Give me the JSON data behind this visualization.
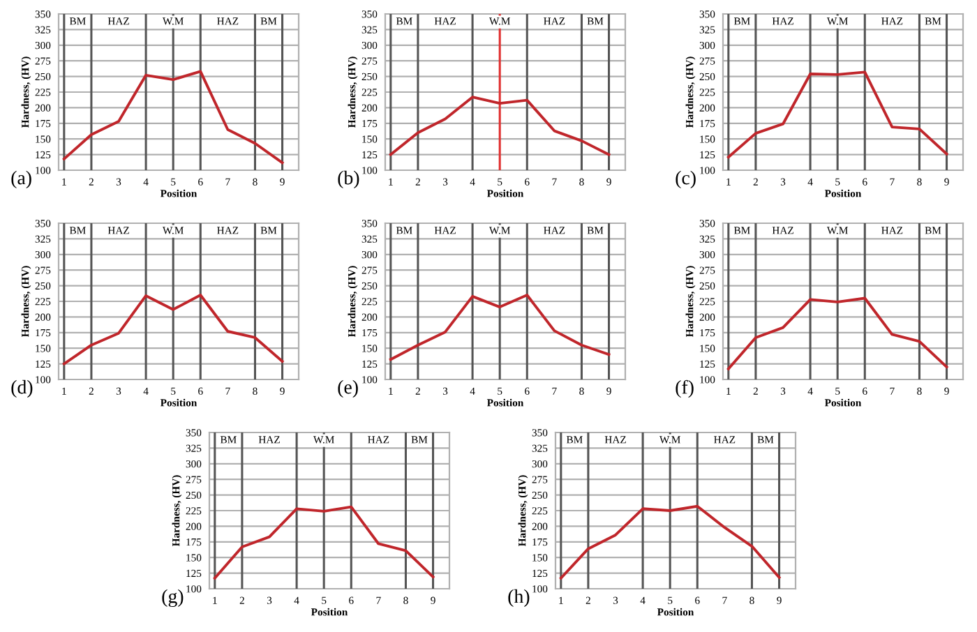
{
  "chart_data": [
    {
      "type": "line",
      "xlabel": "Position",
      "ylabel": "Hardness, (HV)",
      "x": [
        1,
        2,
        3,
        4,
        5,
        6,
        7,
        8,
        9
      ],
      "series": [
        {
          "color": "#c0262b",
          "values": [
            118,
            157,
            178,
            252,
            245,
            258,
            165,
            143,
            112
          ]
        }
      ],
      "xlim": [
        0.8,
        9.6
      ],
      "xticks": [
        1,
        2,
        3,
        4,
        5,
        6,
        7,
        8,
        9
      ],
      "ylim": [
        100,
        350
      ],
      "yticks": [
        100,
        125,
        150,
        175,
        200,
        225,
        250,
        275,
        300,
        325,
        350
      ],
      "grid": "y",
      "ref_lines": [
        {
          "axis": "x",
          "value": 1,
          "color": "#555555"
        },
        {
          "axis": "x",
          "value": 2,
          "color": "#555555"
        },
        {
          "axis": "x",
          "value": 4,
          "color": "#555555"
        },
        {
          "axis": "x",
          "value": 5,
          "color": "#555555"
        },
        {
          "axis": "x",
          "value": 6,
          "color": "#555555"
        },
        {
          "axis": "x",
          "value": 8,
          "color": "#555555"
        },
        {
          "axis": "x",
          "value": 9,
          "color": "#555555"
        }
      ],
      "annotations": [
        "(a)",
        {
          "text": "BM",
          "x": 1.5,
          "y": 337
        },
        {
          "text": "HAZ",
          "x": 3,
          "y": 337
        },
        {
          "text": "W.M",
          "x": 5,
          "y": 337
        },
        {
          "text": "HAZ",
          "x": 7,
          "y": 337
        },
        {
          "text": "BM",
          "x": 8.5,
          "y": 337
        }
      ]
    },
    {
      "type": "line",
      "xlabel": "Position",
      "ylabel": "Hardness, (HV)",
      "x": [
        1,
        2,
        3,
        4,
        5,
        6,
        7,
        8,
        9
      ],
      "series": [
        {
          "color": "#c0262b",
          "values": [
            125,
            160,
            182,
            217,
            207,
            212,
            163,
            147,
            125
          ]
        }
      ],
      "xlim": [
        0.8,
        9.6
      ],
      "xticks": [
        1,
        2,
        3,
        4,
        5,
        6,
        7,
        8,
        9
      ],
      "ylim": [
        100,
        350
      ],
      "yticks": [
        100,
        125,
        150,
        175,
        200,
        225,
        250,
        275,
        300,
        325,
        350
      ],
      "grid": "y",
      "ref_lines": [
        {
          "axis": "x",
          "value": 1,
          "color": "#555555"
        },
        {
          "axis": "x",
          "value": 2,
          "color": "#555555"
        },
        {
          "axis": "x",
          "value": 4,
          "color": "#555555"
        },
        {
          "axis": "x",
          "value": 5,
          "color": "#e03030"
        },
        {
          "axis": "x",
          "value": 6,
          "color": "#555555"
        },
        {
          "axis": "x",
          "value": 8,
          "color": "#555555"
        },
        {
          "axis": "x",
          "value": 9,
          "color": "#555555"
        }
      ],
      "annotations": [
        "(b)",
        {
          "text": "BM",
          "x": 1.5,
          "y": 337
        },
        {
          "text": "HAZ",
          "x": 3,
          "y": 337
        },
        {
          "text": "W.M",
          "x": 5,
          "y": 337
        },
        {
          "text": "HAZ",
          "x": 7,
          "y": 337
        },
        {
          "text": "BM",
          "x": 8.5,
          "y": 337
        }
      ]
    },
    {
      "type": "line",
      "xlabel": "Position",
      "ylabel": "Hardness, (HV)",
      "x": [
        1,
        2,
        3,
        4,
        5,
        6,
        7,
        8,
        9
      ],
      "series": [
        {
          "color": "#c0262b",
          "values": [
            121,
            159,
            174,
            254,
            253,
            257,
            169,
            166,
            126
          ]
        }
      ],
      "xlim": [
        0.8,
        9.6
      ],
      "xticks": [
        1,
        2,
        3,
        4,
        5,
        6,
        7,
        8,
        9
      ],
      "ylim": [
        100,
        350
      ],
      "yticks": [
        100,
        125,
        150,
        175,
        200,
        225,
        250,
        275,
        300,
        325,
        350
      ],
      "grid": "y",
      "ref_lines": [
        {
          "axis": "x",
          "value": 1,
          "color": "#555555"
        },
        {
          "axis": "x",
          "value": 2,
          "color": "#555555"
        },
        {
          "axis": "x",
          "value": 4,
          "color": "#555555"
        },
        {
          "axis": "x",
          "value": 5,
          "color": "#555555"
        },
        {
          "axis": "x",
          "value": 6,
          "color": "#555555"
        },
        {
          "axis": "x",
          "value": 8,
          "color": "#555555"
        },
        {
          "axis": "x",
          "value": 9,
          "color": "#555555"
        }
      ],
      "annotations": [
        "(c)",
        {
          "text": "BM",
          "x": 1.5,
          "y": 337
        },
        {
          "text": "HAZ",
          "x": 3,
          "y": 337
        },
        {
          "text": "W.M",
          "x": 5,
          "y": 337
        },
        {
          "text": "HAZ",
          "x": 7,
          "y": 337
        },
        {
          "text": "BM",
          "x": 8.5,
          "y": 337
        }
      ]
    },
    {
      "type": "line",
      "xlabel": "Position",
      "ylabel": "Hardness, (HV)",
      "x": [
        1,
        2,
        3,
        4,
        5,
        6,
        7,
        8,
        9
      ],
      "series": [
        {
          "color": "#c0262b",
          "values": [
            125,
            155,
            174,
            234,
            212,
            235,
            177,
            167,
            129
          ]
        }
      ],
      "xlim": [
        0.8,
        9.6
      ],
      "xticks": [
        1,
        2,
        3,
        4,
        5,
        6,
        7,
        8,
        9
      ],
      "ylim": [
        100,
        350
      ],
      "yticks": [
        100,
        125,
        150,
        175,
        200,
        225,
        250,
        275,
        300,
        325,
        350
      ],
      "grid": "y",
      "ref_lines": [
        {
          "axis": "x",
          "value": 1,
          "color": "#555555"
        },
        {
          "axis": "x",
          "value": 2,
          "color": "#555555"
        },
        {
          "axis": "x",
          "value": 4,
          "color": "#555555"
        },
        {
          "axis": "x",
          "value": 5,
          "color": "#555555"
        },
        {
          "axis": "x",
          "value": 6,
          "color": "#555555"
        },
        {
          "axis": "x",
          "value": 8,
          "color": "#555555"
        },
        {
          "axis": "x",
          "value": 9,
          "color": "#555555"
        }
      ],
      "annotations": [
        "(d)",
        {
          "text": "BM",
          "x": 1.5,
          "y": 337
        },
        {
          "text": "HAZ",
          "x": 3,
          "y": 337
        },
        {
          "text": "W.M",
          "x": 5,
          "y": 337
        },
        {
          "text": "HAZ",
          "x": 7,
          "y": 337
        },
        {
          "text": "BM",
          "x": 8.5,
          "y": 337
        }
      ]
    },
    {
      "type": "line",
      "xlabel": "Position",
      "ylabel": "Hardness, (HV)",
      "x": [
        1,
        2,
        3,
        4,
        5,
        6,
        7,
        8,
        9
      ],
      "series": [
        {
          "color": "#c0262b",
          "values": [
            132,
            155,
            176,
            233,
            216,
            235,
            178,
            155,
            140
          ]
        }
      ],
      "xlim": [
        0.8,
        9.6
      ],
      "xticks": [
        1,
        2,
        3,
        4,
        5,
        6,
        7,
        8,
        9
      ],
      "ylim": [
        100,
        350
      ],
      "yticks": [
        100,
        125,
        150,
        175,
        200,
        225,
        250,
        275,
        300,
        325,
        350
      ],
      "grid": "y",
      "ref_lines": [
        {
          "axis": "x",
          "value": 1,
          "color": "#555555"
        },
        {
          "axis": "x",
          "value": 2,
          "color": "#555555"
        },
        {
          "axis": "x",
          "value": 4,
          "color": "#555555"
        },
        {
          "axis": "x",
          "value": 5,
          "color": "#555555"
        },
        {
          "axis": "x",
          "value": 6,
          "color": "#555555"
        },
        {
          "axis": "x",
          "value": 8,
          "color": "#555555"
        },
        {
          "axis": "x",
          "value": 9,
          "color": "#555555"
        }
      ],
      "annotations": [
        "(e)",
        {
          "text": "BM",
          "x": 1.5,
          "y": 337
        },
        {
          "text": "HAZ",
          "x": 3,
          "y": 337
        },
        {
          "text": "W.M",
          "x": 5,
          "y": 337
        },
        {
          "text": "HAZ",
          "x": 7,
          "y": 337
        },
        {
          "text": "BM",
          "x": 8.5,
          "y": 337
        }
      ]
    },
    {
      "type": "line",
      "xlabel": "Position",
      "ylabel": "Hardness, (HV)",
      "x": [
        1,
        2,
        3,
        4,
        5,
        6,
        7,
        8,
        9
      ],
      "series": [
        {
          "color": "#c0262b",
          "values": [
            117,
            167,
            183,
            228,
            224,
            230,
            172,
            161,
            120
          ]
        }
      ],
      "xlim": [
        0.8,
        9.6
      ],
      "xticks": [
        1,
        2,
        3,
        4,
        5,
        6,
        7,
        8,
        9
      ],
      "ylim": [
        100,
        350
      ],
      "yticks": [
        100,
        125,
        150,
        175,
        200,
        225,
        250,
        275,
        300,
        325,
        350
      ],
      "grid": "y",
      "ref_lines": [
        {
          "axis": "x",
          "value": 1,
          "color": "#555555"
        },
        {
          "axis": "x",
          "value": 2,
          "color": "#555555"
        },
        {
          "axis": "x",
          "value": 4,
          "color": "#555555"
        },
        {
          "axis": "x",
          "value": 5,
          "color": "#555555"
        },
        {
          "axis": "x",
          "value": 6,
          "color": "#555555"
        },
        {
          "axis": "x",
          "value": 8,
          "color": "#555555"
        },
        {
          "axis": "x",
          "value": 9,
          "color": "#555555"
        }
      ],
      "annotations": [
        "(f)",
        {
          "text": "BM",
          "x": 1.5,
          "y": 337
        },
        {
          "text": "HAZ",
          "x": 3,
          "y": 337
        },
        {
          "text": "W.M",
          "x": 5,
          "y": 337
        },
        {
          "text": "HAZ",
          "x": 7,
          "y": 337
        },
        {
          "text": "BM",
          "x": 8.5,
          "y": 337
        }
      ]
    },
    {
      "type": "line",
      "xlabel": "Position",
      "ylabel": "Hardness, (HV)",
      "x": [
        1,
        2,
        3,
        4,
        5,
        6,
        7,
        8,
        9
      ],
      "series": [
        {
          "color": "#c0262b",
          "values": [
            117,
            167,
            183,
            228,
            224,
            231,
            172,
            161,
            119
          ]
        }
      ],
      "xlim": [
        0.8,
        9.6
      ],
      "xticks": [
        1,
        2,
        3,
        4,
        5,
        6,
        7,
        8,
        9
      ],
      "ylim": [
        100,
        350
      ],
      "yticks": [
        100,
        125,
        150,
        175,
        200,
        225,
        250,
        275,
        300,
        325,
        350
      ],
      "grid": "y",
      "ref_lines": [
        {
          "axis": "x",
          "value": 1,
          "color": "#555555"
        },
        {
          "axis": "x",
          "value": 2,
          "color": "#555555"
        },
        {
          "axis": "x",
          "value": 4,
          "color": "#555555"
        },
        {
          "axis": "x",
          "value": 5,
          "color": "#555555"
        },
        {
          "axis": "x",
          "value": 6,
          "color": "#555555"
        },
        {
          "axis": "x",
          "value": 8,
          "color": "#555555"
        },
        {
          "axis": "x",
          "value": 9,
          "color": "#555555"
        }
      ],
      "annotations": [
        "(g)",
        {
          "text": "BM",
          "x": 1.5,
          "y": 337
        },
        {
          "text": "HAZ",
          "x": 3,
          "y": 337
        },
        {
          "text": "W.M",
          "x": 5,
          "y": 337
        },
        {
          "text": "HAZ",
          "x": 7,
          "y": 337
        },
        {
          "text": "BM",
          "x": 8.5,
          "y": 337
        }
      ]
    },
    {
      "type": "line",
      "xlabel": "Position",
      "ylabel": "Hardness, (HV)",
      "x": [
        1,
        2,
        3,
        4,
        5,
        6,
        7,
        8,
        9
      ],
      "series": [
        {
          "color": "#c0262b",
          "values": [
            117,
            164,
            186,
            228,
            225,
            232,
            198,
            168,
            118
          ]
        }
      ],
      "xlim": [
        0.8,
        9.6
      ],
      "xticks": [
        1,
        2,
        3,
        4,
        5,
        6,
        7,
        8,
        9
      ],
      "ylim": [
        100,
        350
      ],
      "yticks": [
        100,
        125,
        150,
        175,
        200,
        225,
        250,
        275,
        300,
        325,
        350
      ],
      "grid": "y",
      "ref_lines": [
        {
          "axis": "x",
          "value": 1,
          "color": "#555555"
        },
        {
          "axis": "x",
          "value": 2,
          "color": "#555555"
        },
        {
          "axis": "x",
          "value": 4,
          "color": "#555555"
        },
        {
          "axis": "x",
          "value": 5,
          "color": "#555555"
        },
        {
          "axis": "x",
          "value": 6,
          "color": "#555555"
        },
        {
          "axis": "x",
          "value": 8,
          "color": "#555555"
        },
        {
          "axis": "x",
          "value": 9,
          "color": "#555555"
        }
      ],
      "annotations": [
        "(h)",
        {
          "text": "BM",
          "x": 1.5,
          "y": 337
        },
        {
          "text": "HAZ",
          "x": 3,
          "y": 337
        },
        {
          "text": "W.M",
          "x": 5,
          "y": 337
        },
        {
          "text": "HAZ",
          "x": 7,
          "y": 337
        },
        {
          "text": "BM",
          "x": 8.5,
          "y": 337
        }
      ]
    }
  ]
}
